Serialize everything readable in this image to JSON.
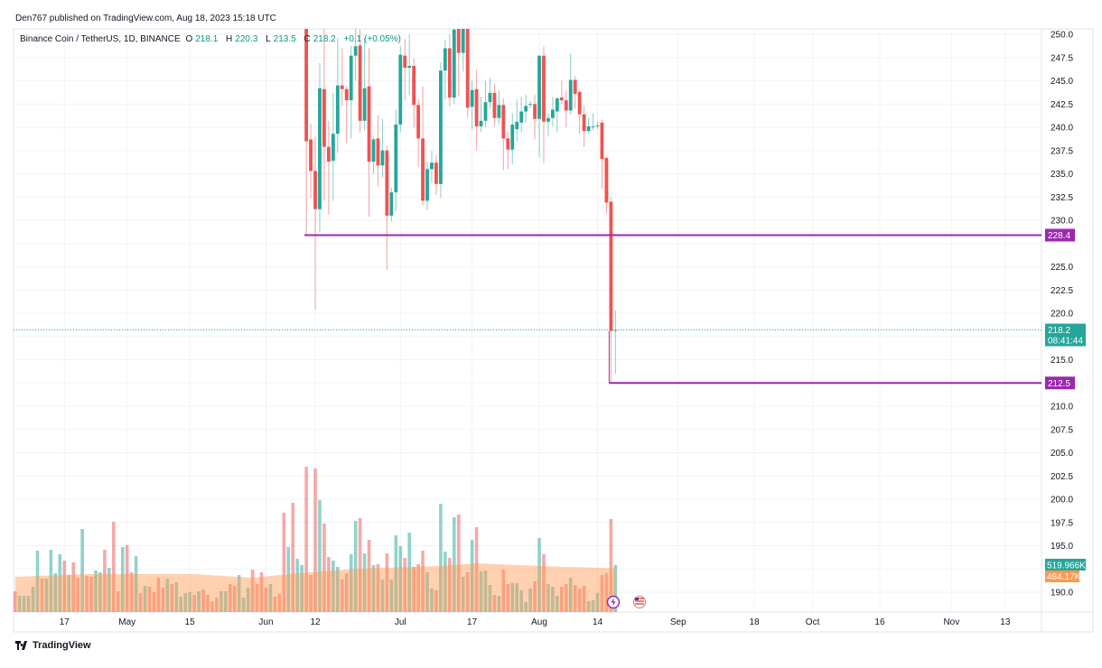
{
  "header": {
    "published": "Den767 published on TradingView.com, Aug 18, 2023 15:18 UTC"
  },
  "legend": {
    "symbol": "Binance Coin / TetherUS, 1D, BINANCE",
    "open_label": "O",
    "open": "218.1",
    "high_label": "H",
    "high": "220.3",
    "low_label": "L",
    "low": "213.5",
    "close_label": "C",
    "close": "218.2",
    "change": "+0.1 (+0.05%)"
  },
  "colors": {
    "up": "#26a69a",
    "down": "#ef5350",
    "line": "#9c27b0",
    "ma": "#ff9850",
    "grid": "#f0f3fa"
  },
  "chart_data": {
    "type": "candlestick",
    "y_axis": {
      "min": 190,
      "max": 250,
      "step": 2.5,
      "position": "right"
    },
    "grid": true,
    "first_date": "2023-04-06",
    "x_ticks": [
      {
        "date": "2023-04-17",
        "label": "17"
      },
      {
        "date": "2023-05-01",
        "label": "May"
      },
      {
        "date": "2023-05-15",
        "label": "15"
      },
      {
        "date": "2023-06-01",
        "label": "Jun"
      },
      {
        "date": "2023-06-12",
        "label": "12"
      },
      {
        "date": "2023-07-01",
        "label": "Jul"
      },
      {
        "date": "2023-07-17",
        "label": "17"
      },
      {
        "date": "2023-08-01",
        "label": "Aug"
      },
      {
        "date": "2023-08-14",
        "label": "14"
      },
      {
        "date": "2023-09-01",
        "label": "Sep"
      },
      {
        "date": "2023-09-18",
        "label": "18"
      },
      {
        "date": "2023-10-01",
        "label": "Oct"
      },
      {
        "date": "2023-10-16",
        "label": "16"
      },
      {
        "date": "2023-11-01",
        "label": "Nov"
      },
      {
        "date": "2023-11-13",
        "label": "13"
      }
    ],
    "candles_start": "2023-06-10",
    "candles_ohlc": [
      [
        251.5,
        253,
        228.4,
        238.5
      ],
      [
        238.7,
        240.4,
        232.4,
        235.3
      ],
      [
        235.3,
        239,
        220.4,
        231.2
      ],
      [
        231.2,
        246.9,
        228.7,
        244.2
      ],
      [
        244.1,
        251,
        232.1,
        237.9
      ],
      [
        237.9,
        240.7,
        230.6,
        236.3
      ],
      [
        236.4,
        243.7,
        232.1,
        239.3
      ],
      [
        239.3,
        249.6,
        237.2,
        244.5
      ],
      [
        244.5,
        248.5,
        242.3,
        244.1
      ],
      [
        244.1,
        244.5,
        238.3,
        242.9
      ],
      [
        242.9,
        248.8,
        238.8,
        247.7
      ],
      [
        247.7,
        251,
        245,
        248.7
      ],
      [
        248.8,
        250.5,
        239.4,
        240.7
      ],
      [
        240.7,
        249.6,
        239.6,
        244.2
      ],
      [
        244.4,
        248.5,
        230.4,
        236.3
      ],
      [
        236.3,
        238.9,
        235,
        238.7
      ],
      [
        238.8,
        241.3,
        233.6,
        235.9
      ],
      [
        235.9,
        240.9,
        234.6,
        237.5
      ],
      [
        237.5,
        238,
        224.7,
        230.5
      ],
      [
        230.5,
        233.5,
        229.9,
        233
      ],
      [
        233,
        241.9,
        231,
        240.3
      ],
      [
        240.3,
        248.7,
        239.5,
        247.8
      ],
      [
        247.7,
        249.5,
        242.9,
        246.4
      ],
      [
        246.4,
        250,
        243.5,
        246.6
      ],
      [
        246.6,
        247.4,
        240,
        242.4
      ],
      [
        242.4,
        243,
        235.7,
        238.8
      ],
      [
        238.8,
        244.4,
        231.6,
        232.1
      ],
      [
        232.1,
        236.3,
        231.1,
        235.5
      ],
      [
        235.5,
        237.5,
        234,
        236.2
      ],
      [
        236.2,
        237,
        232.7,
        233.9
      ],
      [
        233.9,
        247,
        232.4,
        246.1
      ],
      [
        246.1,
        249.4,
        243,
        248.5
      ],
      [
        248.5,
        250,
        242.2,
        243.2
      ],
      [
        243.2,
        252,
        242.5,
        250.5
      ],
      [
        251,
        252.5,
        243.3,
        248
      ],
      [
        248,
        252.5,
        246,
        251
      ],
      [
        251,
        252,
        241,
        242.1
      ],
      [
        242.2,
        245,
        239.8,
        244
      ],
      [
        244.1,
        246.2,
        237.5,
        240.1
      ],
      [
        240.1,
        243.3,
        239.5,
        240.7
      ],
      [
        240.7,
        245,
        240,
        242.7
      ],
      [
        242.7,
        245.3,
        242,
        243.7
      ],
      [
        243.7,
        244.7,
        240.1,
        241
      ],
      [
        241,
        244,
        240.3,
        242.4
      ],
      [
        242.4,
        243.1,
        235.4,
        238.8
      ],
      [
        238.8,
        239.5,
        235.5,
        237.6
      ],
      [
        237.6,
        241.5,
        236,
        240.3
      ],
      [
        239.8,
        243,
        238.5,
        240.6
      ],
      [
        240.5,
        243.3,
        239.5,
        241.7
      ],
      [
        241.7,
        243.5,
        240.5,
        242.3
      ],
      [
        242.4,
        242.8,
        242,
        242.5
      ],
      [
        242.5,
        243.5,
        238.7,
        240.9
      ],
      [
        240.9,
        247.7,
        236.8,
        247.7
      ],
      [
        247.7,
        248.7,
        236.1,
        240.6
      ],
      [
        240.6,
        241.5,
        239,
        241
      ],
      [
        241,
        243.3,
        240.1,
        241.9
      ],
      [
        241.7,
        243.3,
        239.5,
        243.1
      ],
      [
        243.2,
        245,
        242.5,
        242.9
      ],
      [
        242.9,
        244,
        240,
        241.8
      ],
      [
        241.8,
        247.9,
        241.4,
        245.1
      ],
      [
        245.1,
        245.5,
        242,
        243.6
      ],
      [
        243.8,
        244,
        239.3,
        241.4
      ],
      [
        241.4,
        242.3,
        237.9,
        239.6
      ],
      [
        239.6,
        241,
        239.3,
        240.1
      ],
      [
        240.1,
        241.5,
        239.7,
        240.1
      ],
      [
        240.1,
        240.6,
        239.8,
        240.2
      ],
      [
        240.5,
        240.8,
        233.4,
        236.6
      ],
      [
        236.7,
        236.9,
        230.7,
        231.9
      ],
      [
        232,
        232.5,
        212.5,
        218.1
      ],
      [
        218.1,
        220.3,
        213.5,
        218.2
      ]
    ],
    "volume_k": [
      230,
      180,
      180,
      180,
      280,
      680,
      370,
      370,
      690,
      430,
      640,
      570,
      410,
      550,
      380,
      920,
      400,
      390,
      460,
      440,
      690,
      490,
      1000,
      230,
      720,
      740,
      440,
      620,
      210,
      290,
      280,
      220,
      380,
      270,
      370,
      310,
      330,
      170,
      210,
      220,
      190,
      230,
      250,
      190,
      120,
      160,
      230,
      230,
      310,
      290,
      410,
      160,
      270,
      470,
      310,
      440,
      270,
      310,
      170,
      200,
      1100,
      720,
      1210,
      590,
      520,
      1610,
      410,
      1590,
      1240,
      980,
      610,
      570,
      500,
      360,
      430,
      640,
      1010,
      1040,
      650,
      800,
      520,
      530,
      360,
      650,
      360,
      850,
      730,
      600,
      880,
      500,
      530,
      680,
      440,
      260,
      240,
      1200,
      670,
      600,
      1050,
      1080,
      390,
      440,
      800,
      940,
      450,
      460,
      300,
      190,
      180,
      470,
      310,
      320,
      320,
      240,
      110,
      260,
      340,
      820,
      640,
      310,
      280,
      180,
      280,
      310,
      380,
      300,
      260,
      290,
      120,
      130,
      210,
      410,
      430,
      1030,
      519.966
    ],
    "volume_up": [
      0,
      1,
      1,
      1,
      1,
      1,
      0,
      1,
      1,
      1,
      1,
      0,
      1,
      0,
      0,
      1,
      0,
      0,
      1,
      1,
      0,
      1,
      0,
      0,
      1,
      0,
      0,
      1,
      0,
      1,
      0,
      0,
      0,
      0,
      1,
      0,
      1,
      1,
      1,
      1,
      0,
      1,
      0,
      0,
      0,
      0,
      1,
      1,
      0,
      0,
      1,
      1,
      1,
      0,
      0,
      0,
      0,
      1,
      0,
      0,
      0,
      1,
      0,
      1,
      1
    ],
    "volume_ma_k": [
      [
        "2023-04-06",
        390
      ],
      [
        "2023-04-22",
        420
      ],
      [
        "2023-05-16",
        420
      ],
      [
        "2023-05-29",
        380
      ],
      [
        "2023-06-08",
        430
      ],
      [
        "2023-06-22",
        480
      ],
      [
        "2023-07-10",
        510
      ],
      [
        "2023-07-18",
        540
      ],
      [
        "2023-08-01",
        510
      ],
      [
        "2023-08-18",
        484.17
      ]
    ],
    "horizontal_lines": [
      {
        "price": 228.4,
        "label": "228.4",
        "from": "2023-06-10"
      },
      {
        "price": 212.5,
        "label": "212.5",
        "from": "2023-08-17"
      }
    ],
    "last_price": {
      "price": 218.2,
      "label": "218.2",
      "countdown": "08:41:44"
    },
    "volume_label": "519.966K",
    "volume_ma_label": "484.17K"
  },
  "footer": {
    "brand": "TradingView"
  },
  "icons": {
    "event_dividend": "lightning-icon",
    "event_us": "us-flag-icon"
  }
}
